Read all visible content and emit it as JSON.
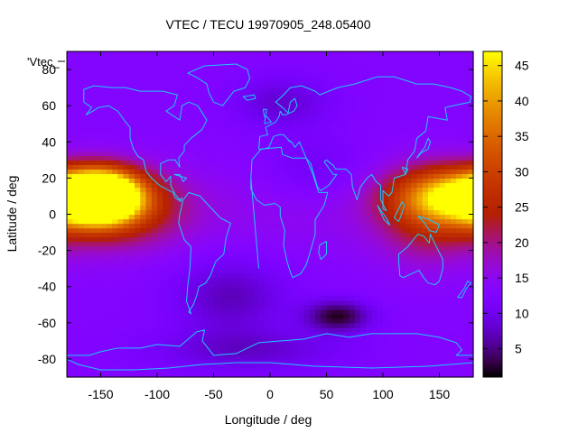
{
  "chart_data": {
    "type": "heatmap",
    "title": "VTEC / TECU 19970905_248.05400",
    "xlabel": "Longitude / deg",
    "ylabel": "Latitude / deg",
    "key_label": "'Vtec_",
    "xlim": [
      -180,
      180
    ],
    "ylim": [
      -90,
      90
    ],
    "x_ticks": [
      -150,
      -100,
      -50,
      0,
      50,
      100,
      150
    ],
    "y_ticks": [
      -80,
      -60,
      -40,
      -20,
      0,
      20,
      40,
      60,
      80
    ],
    "colorbar": {
      "range": [
        1,
        47
      ],
      "ticks": [
        5,
        10,
        15,
        20,
        25,
        30,
        35,
        40,
        45
      ]
    },
    "grid_resolution_deg": {
      "lon": 5,
      "lat": 2.5
    },
    "background_level": 13,
    "features": [
      {
        "kind": "max",
        "lon": -150,
        "lat": 10,
        "peak": 47,
        "lon_sigma": 22,
        "lat_sigma": 9
      },
      {
        "kind": "max",
        "lon": -140,
        "lat": 4,
        "peak": 14,
        "lon_sigma": 40,
        "lat_sigma": 14
      },
      {
        "kind": "max",
        "lon": 175,
        "lat": 10,
        "peak": 31,
        "lon_sigma": 40,
        "lat_sigma": 10
      },
      {
        "kind": "max",
        "lon": 140,
        "lat": 0,
        "peak": 9,
        "lon_sigma": 30,
        "lat_sigma": 18
      },
      {
        "kind": "min",
        "lon": 60,
        "lat": -56,
        "peak": 11,
        "lon_sigma": 20,
        "lat_sigma": 6
      },
      {
        "kind": "min",
        "lon": -35,
        "lat": -45,
        "peak": 6,
        "lon_sigma": 35,
        "lat_sigma": 15
      },
      {
        "kind": "min",
        "lon": 10,
        "lat": 62,
        "peak": 5,
        "lon_sigma": 30,
        "lat_sigma": 10
      },
      {
        "kind": "min",
        "lon": 40,
        "lat": 25,
        "peak": 3,
        "lon_sigma": 30,
        "lat_sigma": 12
      },
      {
        "kind": "min",
        "lon": -20,
        "lat": -75,
        "peak": 5,
        "lon_sigma": 60,
        "lat_sigma": 8
      }
    ]
  },
  "colors": {
    "coastline": "#1ec8ff",
    "palette": "gnuplot black-purple-red-yellow"
  }
}
